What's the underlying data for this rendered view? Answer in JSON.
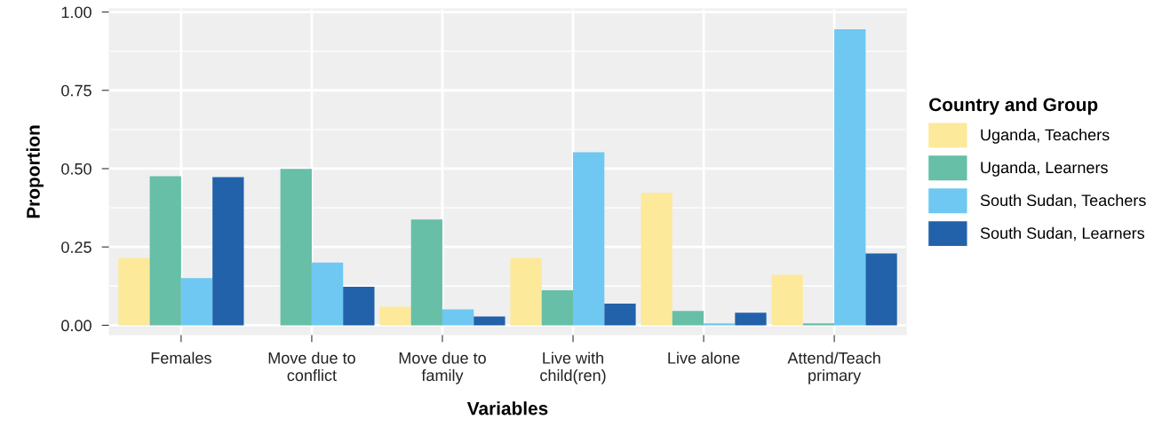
{
  "chart_data": {
    "type": "bar",
    "xlabel": "Variables",
    "ylabel": "Proportion",
    "legend_title": "Country and Group",
    "categories": [
      "Females",
      "Move due to\nconflict",
      "Move due to\nfamily",
      "Live with\nchild(ren)",
      "Live alone",
      "Attend/Teach\nprimary"
    ],
    "series": [
      {
        "name": "Uganda, Teachers",
        "color": "#fde99a",
        "values": [
          0.215,
          0,
          0.059,
          0.215,
          0.423,
          0.161
        ]
      },
      {
        "name": "Uganda, Learners",
        "color": "#66bfa6",
        "values": [
          0.476,
          0.499,
          0.338,
          0.112,
          0.046,
          0.006
        ]
      },
      {
        "name": "South Sudan, Teachers",
        "color": "#6ec8f1",
        "values": [
          0.151,
          0.2,
          0.051,
          0.552,
          0.006,
          0.945
        ]
      },
      {
        "name": "South Sudan, Learners",
        "color": "#2262ab",
        "values": [
          0.473,
          0.123,
          0.028,
          0.069,
          0.04,
          0.229
        ]
      }
    ],
    "ylim": [
      -0.03,
      1.01
    ],
    "yticks": [
      {
        "value": 0,
        "label": "0.00"
      },
      {
        "value": 0.25,
        "label": "0.25"
      },
      {
        "value": 0.5,
        "label": "0.50"
      },
      {
        "value": 0.75,
        "label": "0.75"
      },
      {
        "value": 1,
        "label": "1.00"
      }
    ],
    "grid": true,
    "legend": "right"
  }
}
